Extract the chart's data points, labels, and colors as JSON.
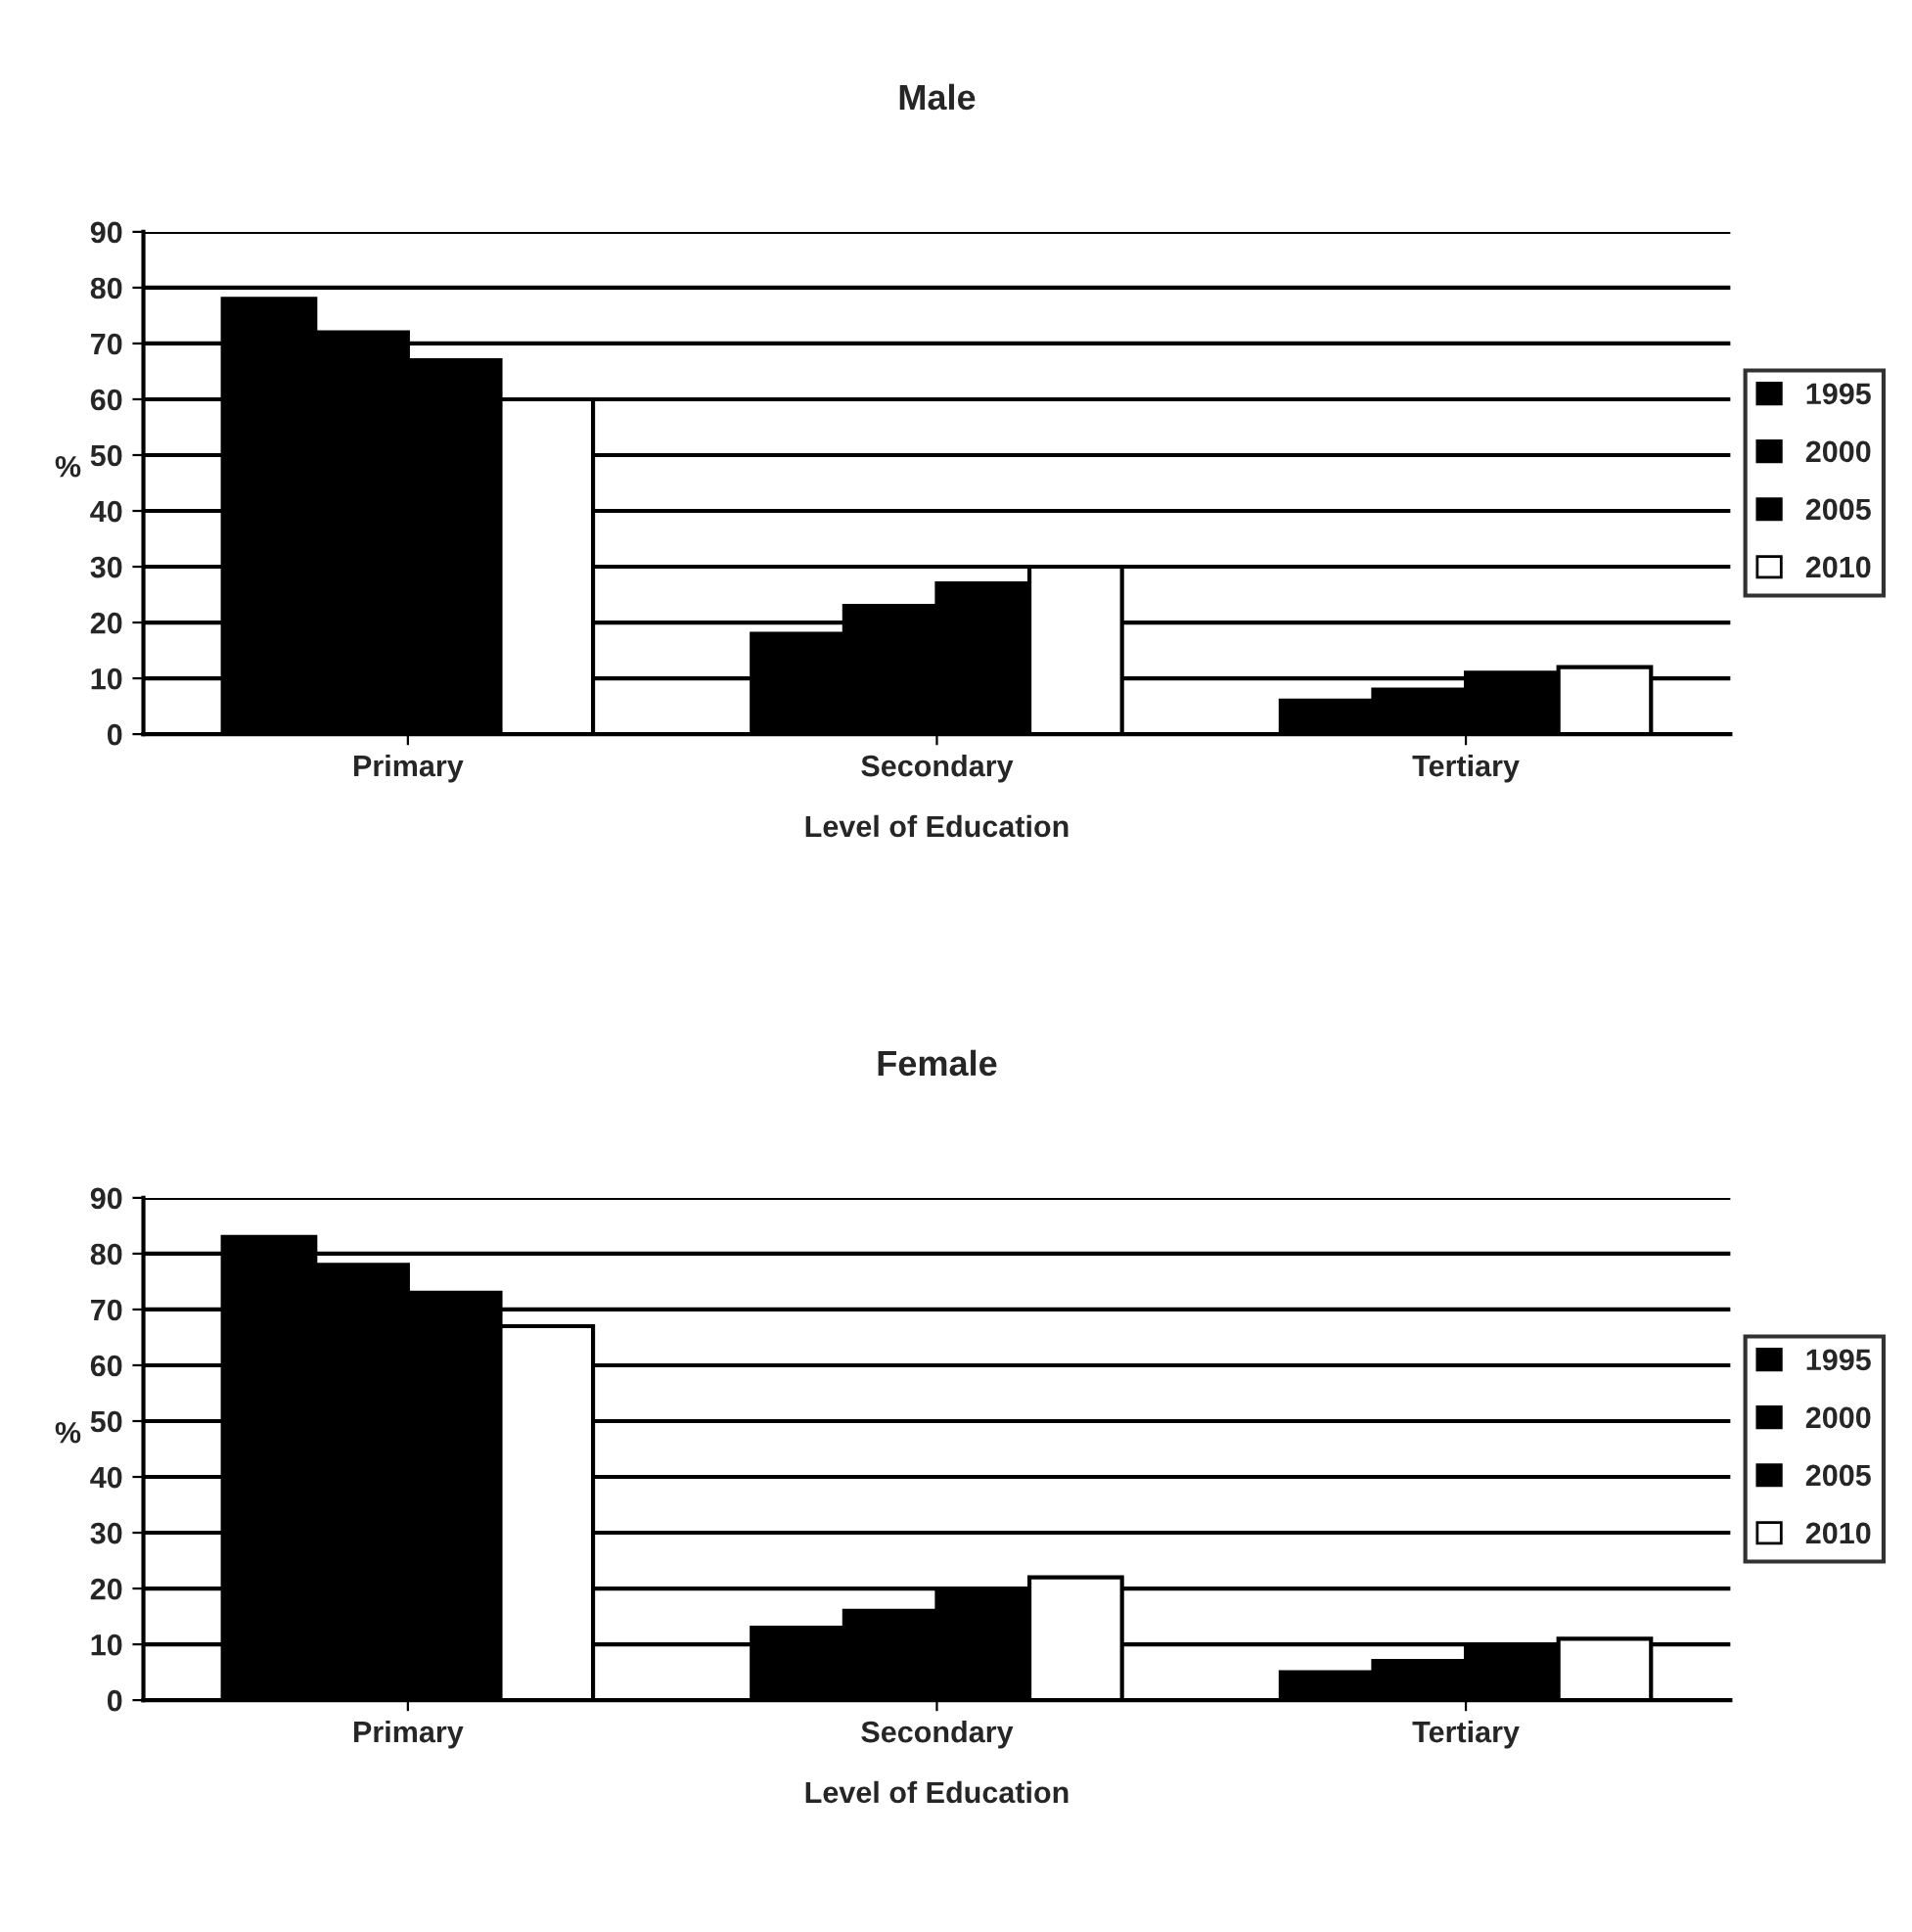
{
  "chart_data": [
    {
      "type": "bar",
      "title": "Male",
      "xlabel": "Level of Education",
      "ylabel": "%",
      "categories": [
        "Primary",
        "Secondary",
        "Tertiary"
      ],
      "series": [
        {
          "name": "1995",
          "color": "#000000",
          "values": [
            78,
            18,
            6
          ]
        },
        {
          "name": "2000",
          "color": "#000000",
          "values": [
            72,
            23,
            8
          ]
        },
        {
          "name": "2005",
          "color": "#000000",
          "values": [
            67,
            27,
            11
          ]
        },
        {
          "name": "2010",
          "color": "#ffffff",
          "values": [
            60,
            30,
            12
          ]
        }
      ],
      "ylim": [
        0,
        90
      ],
      "yticks": [
        0,
        10,
        20,
        30,
        40,
        50,
        60,
        70,
        80,
        90
      ],
      "grid": "y",
      "legend": "right"
    },
    {
      "type": "bar",
      "title": "Female",
      "xlabel": "Level of Education",
      "ylabel": "%",
      "categories": [
        "Primary",
        "Secondary",
        "Tertiary"
      ],
      "series": [
        {
          "name": "1995",
          "color": "#000000",
          "values": [
            83,
            13,
            5
          ]
        },
        {
          "name": "2000",
          "color": "#000000",
          "values": [
            78,
            16,
            7
          ]
        },
        {
          "name": "2005",
          "color": "#000000",
          "values": [
            73,
            20,
            10
          ]
        },
        {
          "name": "2010",
          "color": "#ffffff",
          "values": [
            67,
            22,
            11
          ]
        }
      ],
      "ylim": [
        0,
        90
      ],
      "yticks": [
        0,
        10,
        20,
        30,
        40,
        50,
        60,
        70,
        80,
        90
      ],
      "grid": "y",
      "legend": "right"
    }
  ]
}
